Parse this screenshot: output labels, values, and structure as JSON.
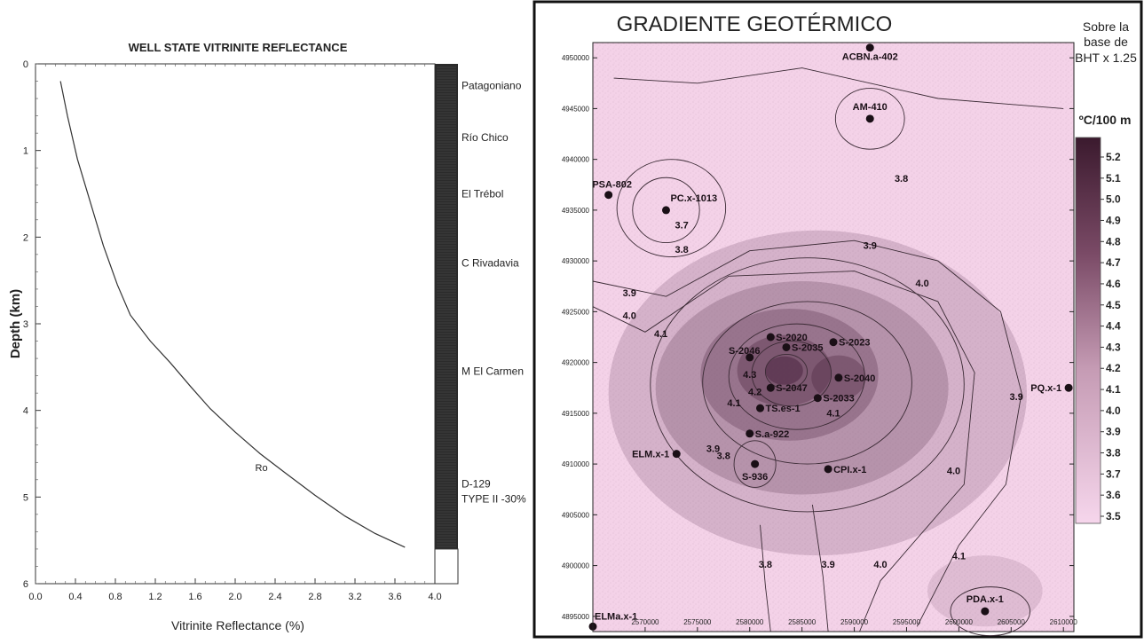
{
  "chart_data": [
    {
      "type": "line",
      "title": "WELL STATE VITRINITE REFLECTANCE",
      "xlabel": "Vitrinite Reflectance (%)",
      "ylabel": "Depth (km)",
      "xlim": [
        0,
        4
      ],
      "ylim": [
        0,
        6
      ],
      "y_inverted": true,
      "x_ticks": [
        "0.0",
        "0.4",
        "0.8",
        "1.2",
        "1.6",
        "2.0",
        "2.4",
        "2.8",
        "3.2",
        "3.6",
        "4.0"
      ],
      "y_ticks": [
        "0",
        "1",
        "2",
        "3",
        "4",
        "5",
        "6"
      ],
      "series": [
        {
          "name": "Ro",
          "x": [
            0.25,
            0.32,
            0.42,
            0.55,
            0.68,
            0.82,
            0.95,
            1.15,
            1.35,
            1.55,
            1.75,
            2.0,
            2.25,
            2.5,
            2.8,
            3.1,
            3.4,
            3.7
          ],
          "y": [
            0.2,
            0.6,
            1.1,
            1.6,
            2.1,
            2.55,
            2.9,
            3.2,
            3.45,
            3.72,
            3.98,
            4.25,
            4.5,
            4.72,
            4.98,
            5.22,
            5.42,
            5.58
          ]
        }
      ],
      "annotations": [
        {
          "text": "Ro",
          "x": 2.2,
          "y": 4.7
        }
      ],
      "formations": [
        {
          "name": "Patagoniano",
          "depth": 0.25
        },
        {
          "name": "Río Chico",
          "depth": 0.85
        },
        {
          "name": "El Trébol",
          "depth": 1.5
        },
        {
          "name": "C Rivadavia",
          "depth": 2.3
        },
        {
          "name": "M El Carmen",
          "depth": 3.55
        },
        {
          "name": "D-129",
          "depth": 4.85
        },
        {
          "name": "TYPE II -30%",
          "depth": 5.02
        }
      ],
      "column_bottom_depth": 5.6
    },
    {
      "type": "heatmap",
      "title": "GRADIENTE GEOTÉRMICO",
      "note_lines": [
        "Sobre la",
        "base de",
        "BHT x 1.25"
      ],
      "legend_title": "ºC/100 m",
      "legend_values": [
        "5.2",
        "5.1",
        "5.0",
        "4.9",
        "4.8",
        "4.7",
        "4.6",
        "4.5",
        "4.4",
        "4.3",
        "4.2",
        "4.1",
        "4.0",
        "3.9",
        "3.8",
        "3.7",
        "3.6",
        "3.5"
      ],
      "legend_range": [
        3.5,
        5.2
      ],
      "xlim": [
        2565000,
        2611000
      ],
      "ylim": [
        4893500,
        4951500
      ],
      "x_ticks": [
        "2570000",
        "2575000",
        "2580000",
        "2585000",
        "2590000",
        "2595000",
        "2600000",
        "2605000",
        "2610000"
      ],
      "y_ticks": [
        "4950000",
        "4945000",
        "4940000",
        "4935000",
        "4930000",
        "4925000",
        "4920000",
        "4915000",
        "4910000",
        "4905000",
        "4900000",
        "4895000"
      ],
      "colors": {
        "low": "#f6d6ec",
        "high": "#3b1a2e"
      },
      "wells": [
        {
          "name": "ACBN.a-402",
          "x": 2591500,
          "y": 4951000
        },
        {
          "name": "AM-410",
          "x": 2591500,
          "y": 4944000
        },
        {
          "name": "PSA-802",
          "x": 2566500,
          "y": 4936500
        },
        {
          "name": "PC.x-1013",
          "x": 2572000,
          "y": 4935000
        },
        {
          "name": "S-2020",
          "x": 2582000,
          "y": 4922500
        },
        {
          "name": "S-2035",
          "x": 2583500,
          "y": 4921500
        },
        {
          "name": "S-2023",
          "x": 2588000,
          "y": 4922000
        },
        {
          "name": "S-2046",
          "x": 2580000,
          "y": 4920500
        },
        {
          "name": "S-2040",
          "x": 2588500,
          "y": 4918500
        },
        {
          "name": "S-2047",
          "x": 2582000,
          "y": 4917500
        },
        {
          "name": "S-2033",
          "x": 2586500,
          "y": 4916500
        },
        {
          "name": "TS.es-1",
          "x": 2581000,
          "y": 4915500
        },
        {
          "name": "S.a-922",
          "x": 2580000,
          "y": 4913000
        },
        {
          "name": "ELM.x-1",
          "x": 2573000,
          "y": 4911000
        },
        {
          "name": "S-936",
          "x": 2580500,
          "y": 4910000
        },
        {
          "name": "CPI.x-1",
          "x": 2587500,
          "y": 4909500
        },
        {
          "name": "PQ.x-1",
          "x": 2610500,
          "y": 4917500
        },
        {
          "name": "PDA.x-1",
          "x": 2602500,
          "y": 4895500
        },
        {
          "name": "ELMa.x-1",
          "x": 2565000,
          "y": 4894000
        }
      ],
      "contour_labels": [
        {
          "text": "3.8",
          "x": 2594500,
          "y": 4937800
        },
        {
          "text": "3.7",
          "x": 2573500,
          "y": 4933200
        },
        {
          "text": "3.8",
          "x": 2573500,
          "y": 4930800
        },
        {
          "text": "3.9",
          "x": 2591500,
          "y": 4931200
        },
        {
          "text": "3.9",
          "x": 2568500,
          "y": 4926500
        },
        {
          "text": "4.0",
          "x": 2596500,
          "y": 4927500
        },
        {
          "text": "4.0",
          "x": 2568500,
          "y": 4924300
        },
        {
          "text": "4.1",
          "x": 2571500,
          "y": 4922500
        },
        {
          "text": "4.3",
          "x": 2580000,
          "y": 4918500
        },
        {
          "text": "4.2",
          "x": 2580500,
          "y": 4916800
        },
        {
          "text": "4.1",
          "x": 2578500,
          "y": 4915700
        },
        {
          "text": "4.1",
          "x": 2588000,
          "y": 4914700
        },
        {
          "text": "3.9",
          "x": 2605500,
          "y": 4916300
        },
        {
          "text": "3.9",
          "x": 2576500,
          "y": 4911200
        },
        {
          "text": "3.8",
          "x": 2577500,
          "y": 4910500
        },
        {
          "text": "4.0",
          "x": 2599500,
          "y": 4909000
        },
        {
          "text": "3.8",
          "x": 2581500,
          "y": 4899800
        },
        {
          "text": "3.9",
          "x": 2587500,
          "y": 4899800
        },
        {
          "text": "4.0",
          "x": 2592500,
          "y": 4899800
        },
        {
          "text": "4.1",
          "x": 2600000,
          "y": 4900600
        }
      ],
      "hotspots": [
        {
          "x": 2583300,
          "y": 4919200,
          "value": 5.2,
          "sx": 4200,
          "sy": 4200
        },
        {
          "x": 2588500,
          "y": 4918500,
          "value": 4.4,
          "sx": 3000,
          "sy": 3000
        }
      ],
      "background_value": 3.65
    }
  ]
}
